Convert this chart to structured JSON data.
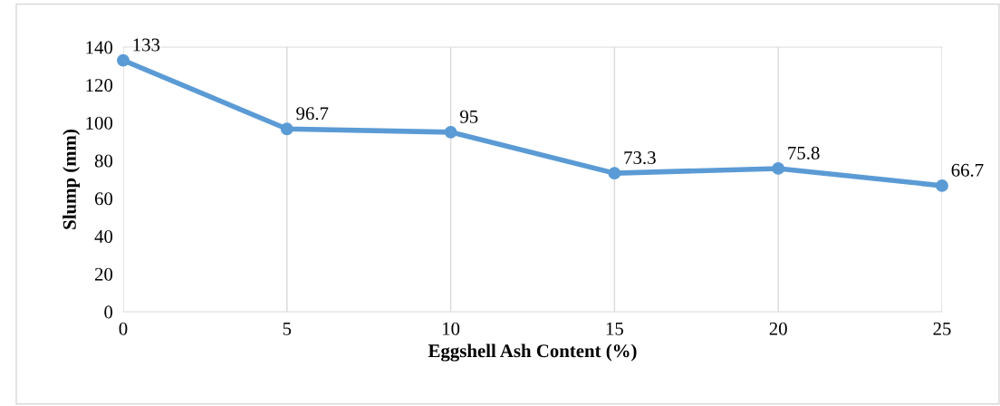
{
  "chart_data": {
    "type": "line",
    "xlabel": "Eggshell Ash Content (%)",
    "ylabel": "Slump (mm)",
    "x": [
      0,
      5,
      10,
      15,
      20,
      25
    ],
    "series": [
      {
        "color": "#5b9bd5",
        "values": [
          133,
          96.7,
          95,
          73.3,
          75.8,
          66.7
        ]
      }
    ],
    "xlim": [
      0,
      25
    ],
    "xticks": [
      0,
      5,
      10,
      15,
      20,
      25
    ],
    "ylim": [
      0,
      140
    ],
    "yticks": [
      0,
      20,
      40,
      60,
      80,
      100,
      120,
      140
    ],
    "grid": "x",
    "marker": "circle",
    "line_style": "solid",
    "data_labels": true
  }
}
